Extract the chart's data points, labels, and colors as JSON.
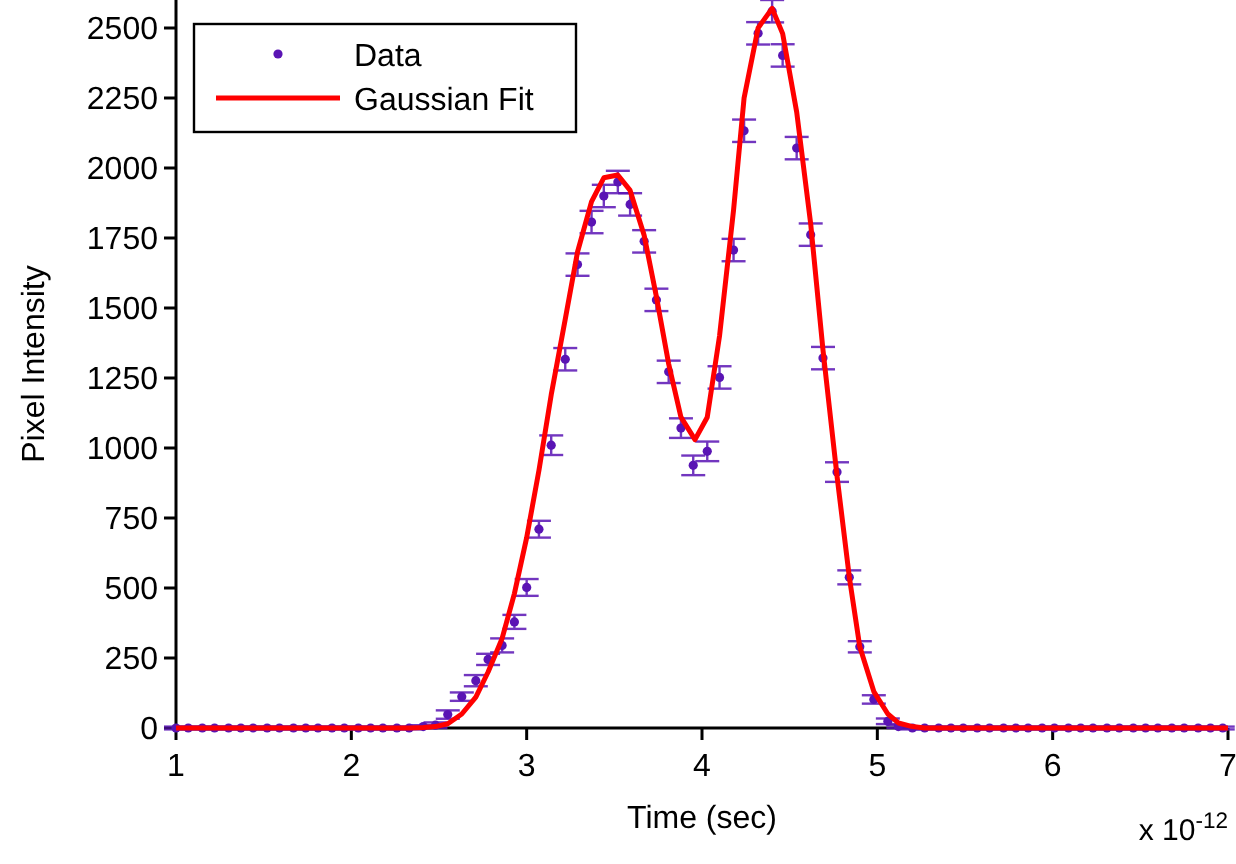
{
  "chart_data": {
    "type": "scatter",
    "xlabel": "Time (sec)",
    "ylabel": "Pixel Intensity",
    "annotations": [
      "x 10$^{-12}$"
    ],
    "xlim": [
      1,
      7
    ],
    "xticks": [
      1,
      2,
      3,
      4,
      5,
      6,
      7
    ],
    "ylim": [
      0,
      2600
    ],
    "yticks": [
      0,
      250,
      500,
      750,
      1000,
      1250,
      1500,
      1750,
      2000,
      2250,
      2500
    ],
    "grid": false,
    "legend": "top left",
    "series": [
      {
        "name": "Data",
        "marker": "circle",
        "color": "#5a14b4",
        "x": [
          1.0,
          1.07,
          1.15,
          1.22,
          1.3,
          1.37,
          1.44,
          1.52,
          1.59,
          1.67,
          1.74,
          1.81,
          1.89,
          1.96,
          2.04,
          2.11,
          2.18,
          2.26,
          2.33,
          2.41,
          2.48,
          2.55,
          2.63,
          2.71,
          2.78,
          2.86,
          2.93,
          3.0,
          3.07,
          3.14,
          3.22,
          3.29,
          3.37,
          3.44,
          3.52,
          3.59,
          3.67,
          3.74,
          3.81,
          3.88,
          3.95,
          4.03,
          4.1,
          4.18,
          4.24,
          4.32,
          4.4,
          4.46,
          4.54,
          4.62,
          4.69,
          4.77,
          4.84,
          4.9,
          4.98,
          5.06,
          5.12,
          5.2,
          5.27,
          5.35,
          5.42,
          5.49,
          5.57,
          5.64,
          5.72,
          5.79,
          5.86,
          5.94,
          6.01,
          6.09,
          6.16,
          6.23,
          6.31,
          6.38,
          6.46,
          6.53,
          6.6,
          6.68,
          6.75,
          6.83,
          6.9,
          6.97
        ],
        "values": [
          0,
          0,
          0,
          0,
          0,
          0,
          0,
          0,
          0,
          0,
          0,
          0,
          0,
          0,
          0,
          0,
          0,
          0,
          0,
          5,
          10,
          48,
          112,
          169,
          245,
          295,
          379,
          502,
          710,
          1010,
          1317,
          1655,
          1807,
          1900,
          1950,
          1870,
          1738,
          1529,
          1272,
          1071,
          938,
          988,
          1252,
          1707,
          2133,
          2481,
          2560,
          2402,
          2071,
          1762,
          1321,
          914,
          538,
          290,
          102,
          24,
          5,
          0,
          0,
          0,
          0,
          0,
          0,
          0,
          0,
          0,
          0,
          0,
          0,
          0,
          0,
          0,
          0,
          0,
          0,
          0,
          0,
          0,
          0,
          0,
          0,
          0
        ],
        "errors": [
          5,
          5,
          5,
          5,
          5,
          5,
          5,
          5,
          5,
          5,
          5,
          5,
          5,
          5,
          5,
          5,
          5,
          5,
          5,
          5,
          10,
          15,
          15,
          20,
          20,
          25,
          25,
          30,
          30,
          35,
          40,
          40,
          40,
          40,
          40,
          40,
          40,
          40,
          40,
          35,
          35,
          35,
          40,
          40,
          40,
          40,
          40,
          40,
          40,
          40,
          40,
          35,
          25,
          20,
          15,
          10,
          5,
          5,
          5,
          5,
          5,
          5,
          5,
          5,
          5,
          5,
          5,
          5,
          5,
          5,
          5,
          5,
          5,
          5,
          5,
          5,
          5,
          5,
          5,
          5,
          5,
          5
        ]
      },
      {
        "name": "Gaussian Fit",
        "type": "line",
        "line_style": "solid",
        "color": "#ff0000",
        "x": [
          1.0,
          2.33,
          2.41,
          2.48,
          2.55,
          2.63,
          2.71,
          2.78,
          2.86,
          2.93,
          3.0,
          3.07,
          3.14,
          3.22,
          3.29,
          3.37,
          3.44,
          3.52,
          3.59,
          3.67,
          3.74,
          3.81,
          3.88,
          3.96,
          4.03,
          4.1,
          4.18,
          4.24,
          4.32,
          4.4,
          4.46,
          4.54,
          4.62,
          4.69,
          4.77,
          4.84,
          4.9,
          4.98,
          5.06,
          5.12,
          5.2,
          5.27,
          7.0
        ],
        "values": [
          0,
          0,
          2,
          5,
          15,
          50,
          110,
          200,
          320,
          480,
          680,
          920,
          1190,
          1460,
          1700,
          1880,
          1965,
          1975,
          1920,
          1760,
          1540,
          1300,
          1110,
          1030,
          1110,
          1400,
          1850,
          2250,
          2500,
          2570,
          2480,
          2200,
          1800,
          1350,
          900,
          540,
          290,
          130,
          50,
          18,
          5,
          0,
          0
        ]
      }
    ]
  }
}
